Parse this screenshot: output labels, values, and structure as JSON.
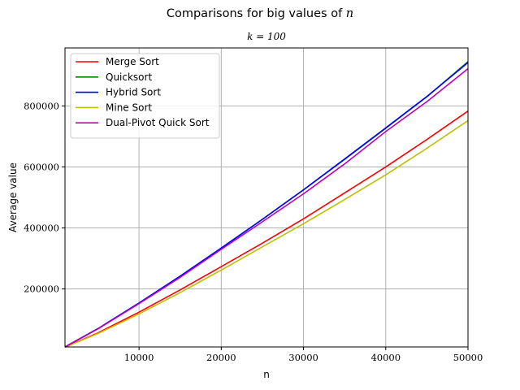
{
  "chart_data": {
    "type": "line",
    "title": "Comparisons for big values of n",
    "title_prefix": "Comparisons for big values of ",
    "title_var": "n",
    "subtitle": "k = 100",
    "xlabel": "n",
    "ylabel": "Average value",
    "xlim": [
      1000,
      50000
    ],
    "ylim": [
      10000,
      990000
    ],
    "xticks": [
      10000,
      20000,
      30000,
      40000,
      50000
    ],
    "yticks": [
      200000,
      400000,
      600000,
      800000
    ],
    "grid": true,
    "legend_position": "top-left",
    "x": [
      1000,
      5000,
      10000,
      15000,
      20000,
      25000,
      30000,
      35000,
      40000,
      45000,
      50000
    ],
    "series": [
      {
        "name": "Merge Sort",
        "color": "#ff0000",
        "values": [
          9000,
          56000,
          124000,
          197000,
          273000,
          350000,
          430000,
          515000,
          600000,
          690000,
          783000
        ]
      },
      {
        "name": "Quicksort",
        "color": "#008000",
        "values": [
          10000,
          70000,
          154000,
          242000,
          334000,
          428000,
          525000,
          625000,
          727000,
          830000,
          945000
        ]
      },
      {
        "name": "Hybrid Sort",
        "color": "#0000ff",
        "values": [
          10000,
          70000,
          154000,
          242000,
          334000,
          428000,
          525000,
          626000,
          728000,
          831000,
          942000
        ]
      },
      {
        "name": "Mine Sort",
        "color": "#bfbf00",
        "values": [
          9000,
          54000,
          118000,
          188000,
          262000,
          338000,
          414000,
          493000,
          574000,
          661000,
          752000
        ]
      },
      {
        "name": "Dual-Pivot Quick Sort",
        "color": "#bf00bf",
        "values": [
          10000,
          69000,
          152000,
          238000,
          330000,
          420000,
          512000,
          610000,
          716000,
          814000,
          922000
        ]
      }
    ]
  }
}
